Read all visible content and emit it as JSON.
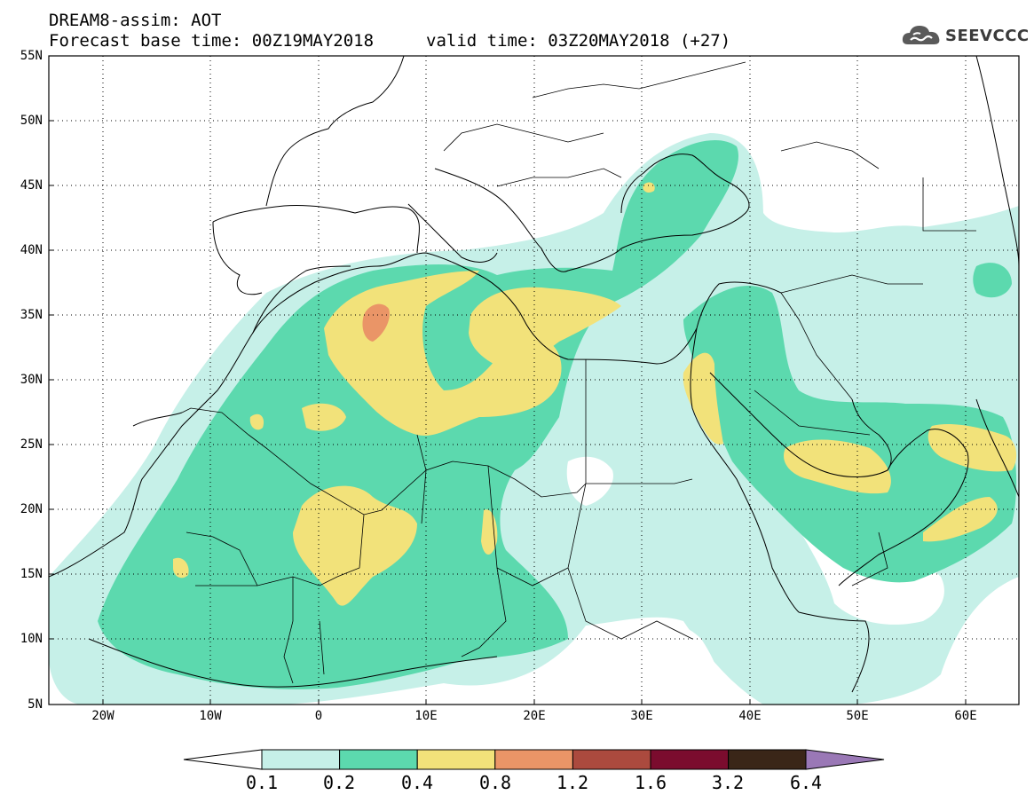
{
  "header": {
    "line1": "DREAM8-assim: AOT",
    "line2": "Forecast base time: 00Z19MAY2018",
    "valid": "valid time: 03Z20MAY2018 (+27)"
  },
  "logo": {
    "text": "SEEVCCC",
    "icon": "cloud-icon"
  },
  "map": {
    "variable": "AOT",
    "lon_range": [
      -25,
      65
    ],
    "lat_range": [
      5,
      55
    ],
    "y_ticks": [
      "55N",
      "50N",
      "45N",
      "40N",
      "35N",
      "30N",
      "25N",
      "20N",
      "15N",
      "10N",
      "5N"
    ],
    "x_ticks": [
      "20W",
      "10W",
      "0",
      "10E",
      "20E",
      "30E",
      "40E",
      "50E",
      "60E"
    ],
    "gridlines": "dotted"
  },
  "colorbar": {
    "labels": [
      "0.1",
      "0.2",
      "0.4",
      "0.8",
      "1.2",
      "1.6",
      "3.2",
      "6.4"
    ],
    "colors": [
      "#c6f0e8",
      "#5cd9ae",
      "#f2e27a",
      "#ea9567",
      "#ab4a3e",
      "#7b0c2e",
      "#3a2618",
      "#9a78b6"
    ],
    "below_color": "#ffffff"
  }
}
